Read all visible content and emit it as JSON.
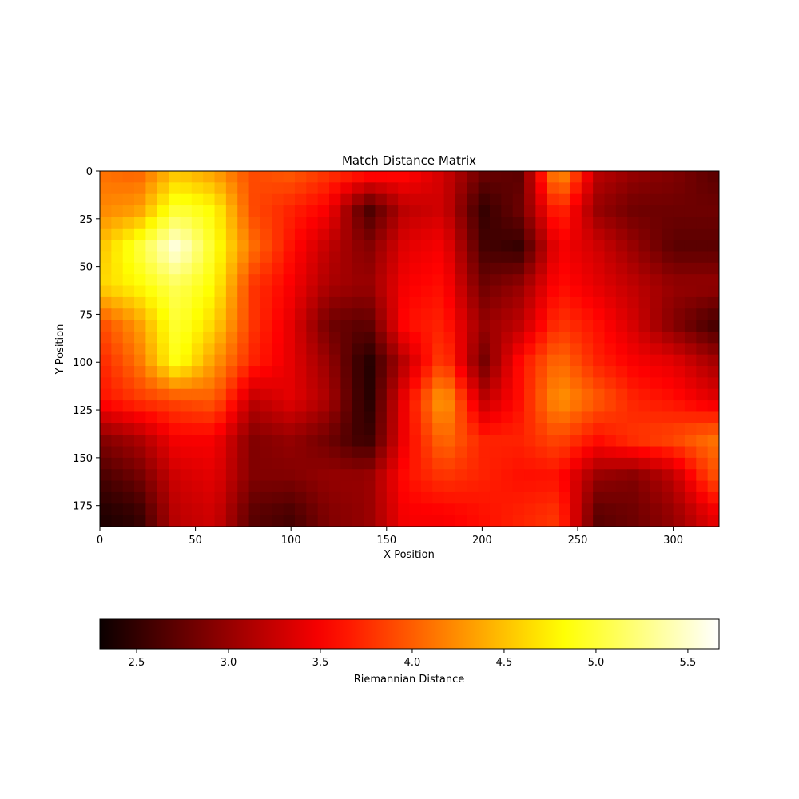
{
  "chart_data": {
    "type": "heatmap",
    "title": "Match Distance Matrix",
    "xlabel": "X Position",
    "ylabel": "Y Position",
    "xlim": [
      0,
      324
    ],
    "ylim": [
      186,
      0
    ],
    "x_ticks": [
      0,
      50,
      100,
      150,
      200,
      250,
      300
    ],
    "y_ticks": [
      0,
      25,
      50,
      75,
      100,
      125,
      150,
      175
    ],
    "colormap": "hot",
    "colorbar": {
      "label": "Riemannian Distance",
      "range": [
        2.3,
        5.67
      ],
      "ticks": [
        2.5,
        3.0,
        3.5,
        4.0,
        4.5,
        5.0,
        5.5
      ],
      "orientation": "horizontal",
      "placement": "bottom"
    },
    "grid_x": [
      0,
      20,
      40,
      60,
      80,
      100,
      120,
      140,
      160,
      180,
      200,
      220,
      240,
      260,
      280,
      300,
      320
    ],
    "grid_y": [
      0,
      20,
      40,
      60,
      80,
      100,
      120,
      140,
      160,
      180
    ],
    "values": [
      [
        4.1,
        4.0,
        4.5,
        4.3,
        3.9,
        4.0,
        3.8,
        3.7,
        3.6,
        3.3,
        2.8,
        2.7,
        4.4,
        3.2,
        3.0,
        2.9,
        2.7
      ],
      [
        4.2,
        4.3,
        5.0,
        4.8,
        3.9,
        3.7,
        3.5,
        2.6,
        3.2,
        3.3,
        2.5,
        2.8,
        3.8,
        3.0,
        2.8,
        2.8,
        2.8
      ],
      [
        4.5,
        5.0,
        5.6,
        4.9,
        4.1,
        3.6,
        3.2,
        2.9,
        3.4,
        3.5,
        2.6,
        2.5,
        3.5,
        3.3,
        3.0,
        2.7,
        2.7
      ],
      [
        4.6,
        4.8,
        5.1,
        4.8,
        3.8,
        3.5,
        3.1,
        3.0,
        3.5,
        3.6,
        2.8,
        3.0,
        3.6,
        3.4,
        3.2,
        3.0,
        3.0
      ],
      [
        3.9,
        4.3,
        5.0,
        4.6,
        3.8,
        3.4,
        2.8,
        2.7,
        3.6,
        3.7,
        3.0,
        3.2,
        3.8,
        3.6,
        3.3,
        2.9,
        2.6
      ],
      [
        3.7,
        4.1,
        4.9,
        4.3,
        3.7,
        3.4,
        3.0,
        2.4,
        3.2,
        3.9,
        2.8,
        3.6,
        4.1,
        3.7,
        3.5,
        3.4,
        3.1
      ],
      [
        3.6,
        3.8,
        3.9,
        4.0,
        3.2,
        3.4,
        3.1,
        2.4,
        3.5,
        4.4,
        3.2,
        3.6,
        4.3,
        4.0,
        3.7,
        3.6,
        3.4
      ],
      [
        2.9,
        3.1,
        3.5,
        3.5,
        2.9,
        3.0,
        2.8,
        2.5,
        3.5,
        4.1,
        3.7,
        3.7,
        3.9,
        3.6,
        3.8,
        3.9,
        4.1
      ],
      [
        2.6,
        2.8,
        3.3,
        3.4,
        2.9,
        2.9,
        3.0,
        3.0,
        3.6,
        3.8,
        3.7,
        3.6,
        3.6,
        3.0,
        2.9,
        3.2,
        3.9
      ],
      [
        2.4,
        2.5,
        3.2,
        3.3,
        2.7,
        2.6,
        2.9,
        3.0,
        3.5,
        3.5,
        3.6,
        3.7,
        3.8,
        2.7,
        2.8,
        3.0,
        3.4
      ]
    ]
  }
}
